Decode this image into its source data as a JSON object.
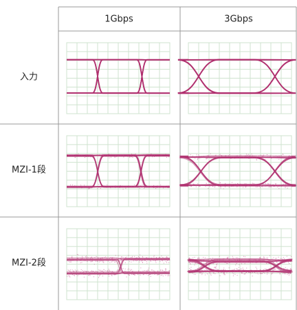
{
  "table": {
    "columns": [
      "1Gbps",
      "3Gbps"
    ],
    "rows": [
      {
        "label": "入力"
      },
      {
        "label": "MZI-1段"
      },
      {
        "label": "MZI-2段"
      }
    ]
  }
}
